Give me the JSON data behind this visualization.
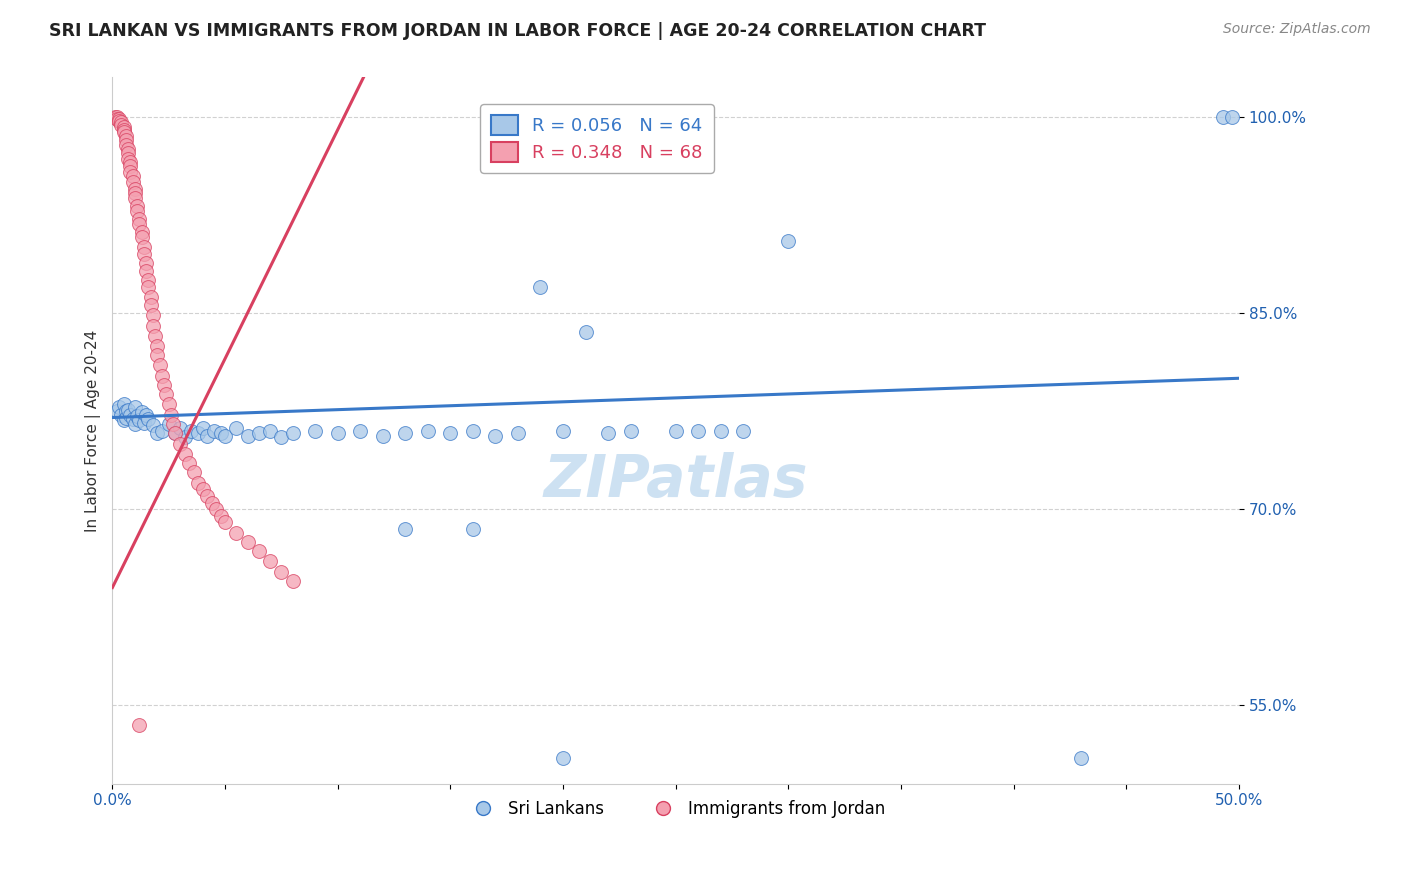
{
  "title": "SRI LANKAN VS IMMIGRANTS FROM JORDAN IN LABOR FORCE | AGE 20-24 CORRELATION CHART",
  "source": "Source: ZipAtlas.com",
  "ylabel": "In Labor Force | Age 20-24",
  "xlim": [
    0.0,
    0.5
  ],
  "ylim": [
    0.49,
    1.03
  ],
  "xticks": [
    0.0,
    0.05,
    0.1,
    0.15,
    0.2,
    0.25,
    0.3,
    0.35,
    0.4,
    0.45,
    0.5
  ],
  "xticklabels": [
    "0.0%",
    "",
    "",
    "",
    "",
    "",
    "",
    "",
    "",
    "",
    "50.0%"
  ],
  "yticks": [
    0.55,
    0.7,
    0.85,
    1.0
  ],
  "yticklabels": [
    "55.0%",
    "70.0%",
    "85.0%",
    "100.0%"
  ],
  "blue_color": "#a8c8e8",
  "pink_color": "#f4a0b0",
  "blue_line_color": "#3878c8",
  "pink_line_color": "#d84060",
  "legend_blue_label": "R = 0.056   N = 64",
  "legend_pink_label": "R = 0.348   N = 68",
  "scatter_legend_blue": "Sri Lankans",
  "scatter_legend_pink": "Immigrants from Jordan",
  "watermark": "ZIPatlas",
  "axis_color": "#2060b0",
  "grid_color": "#cccccc",
  "title_color": "#222222",
  "source_color": "#888888"
}
